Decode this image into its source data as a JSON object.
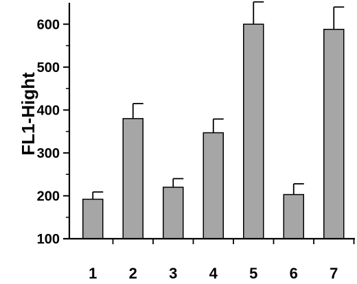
{
  "chart_data": {
    "type": "bar",
    "categories": [
      "1",
      "2",
      "3",
      "4",
      "5",
      "6",
      "7"
    ],
    "values": [
      192,
      380,
      220,
      347,
      600,
      203,
      588
    ],
    "errors": [
      17,
      35,
      20,
      32,
      52,
      25,
      52
    ],
    "ylabel": "FL1-Hight",
    "ylim": [
      100,
      650
    ],
    "yticks": [
      100,
      200,
      300,
      400,
      500,
      600
    ],
    "bar_color": "#a6a6a6",
    "grid": false
  }
}
